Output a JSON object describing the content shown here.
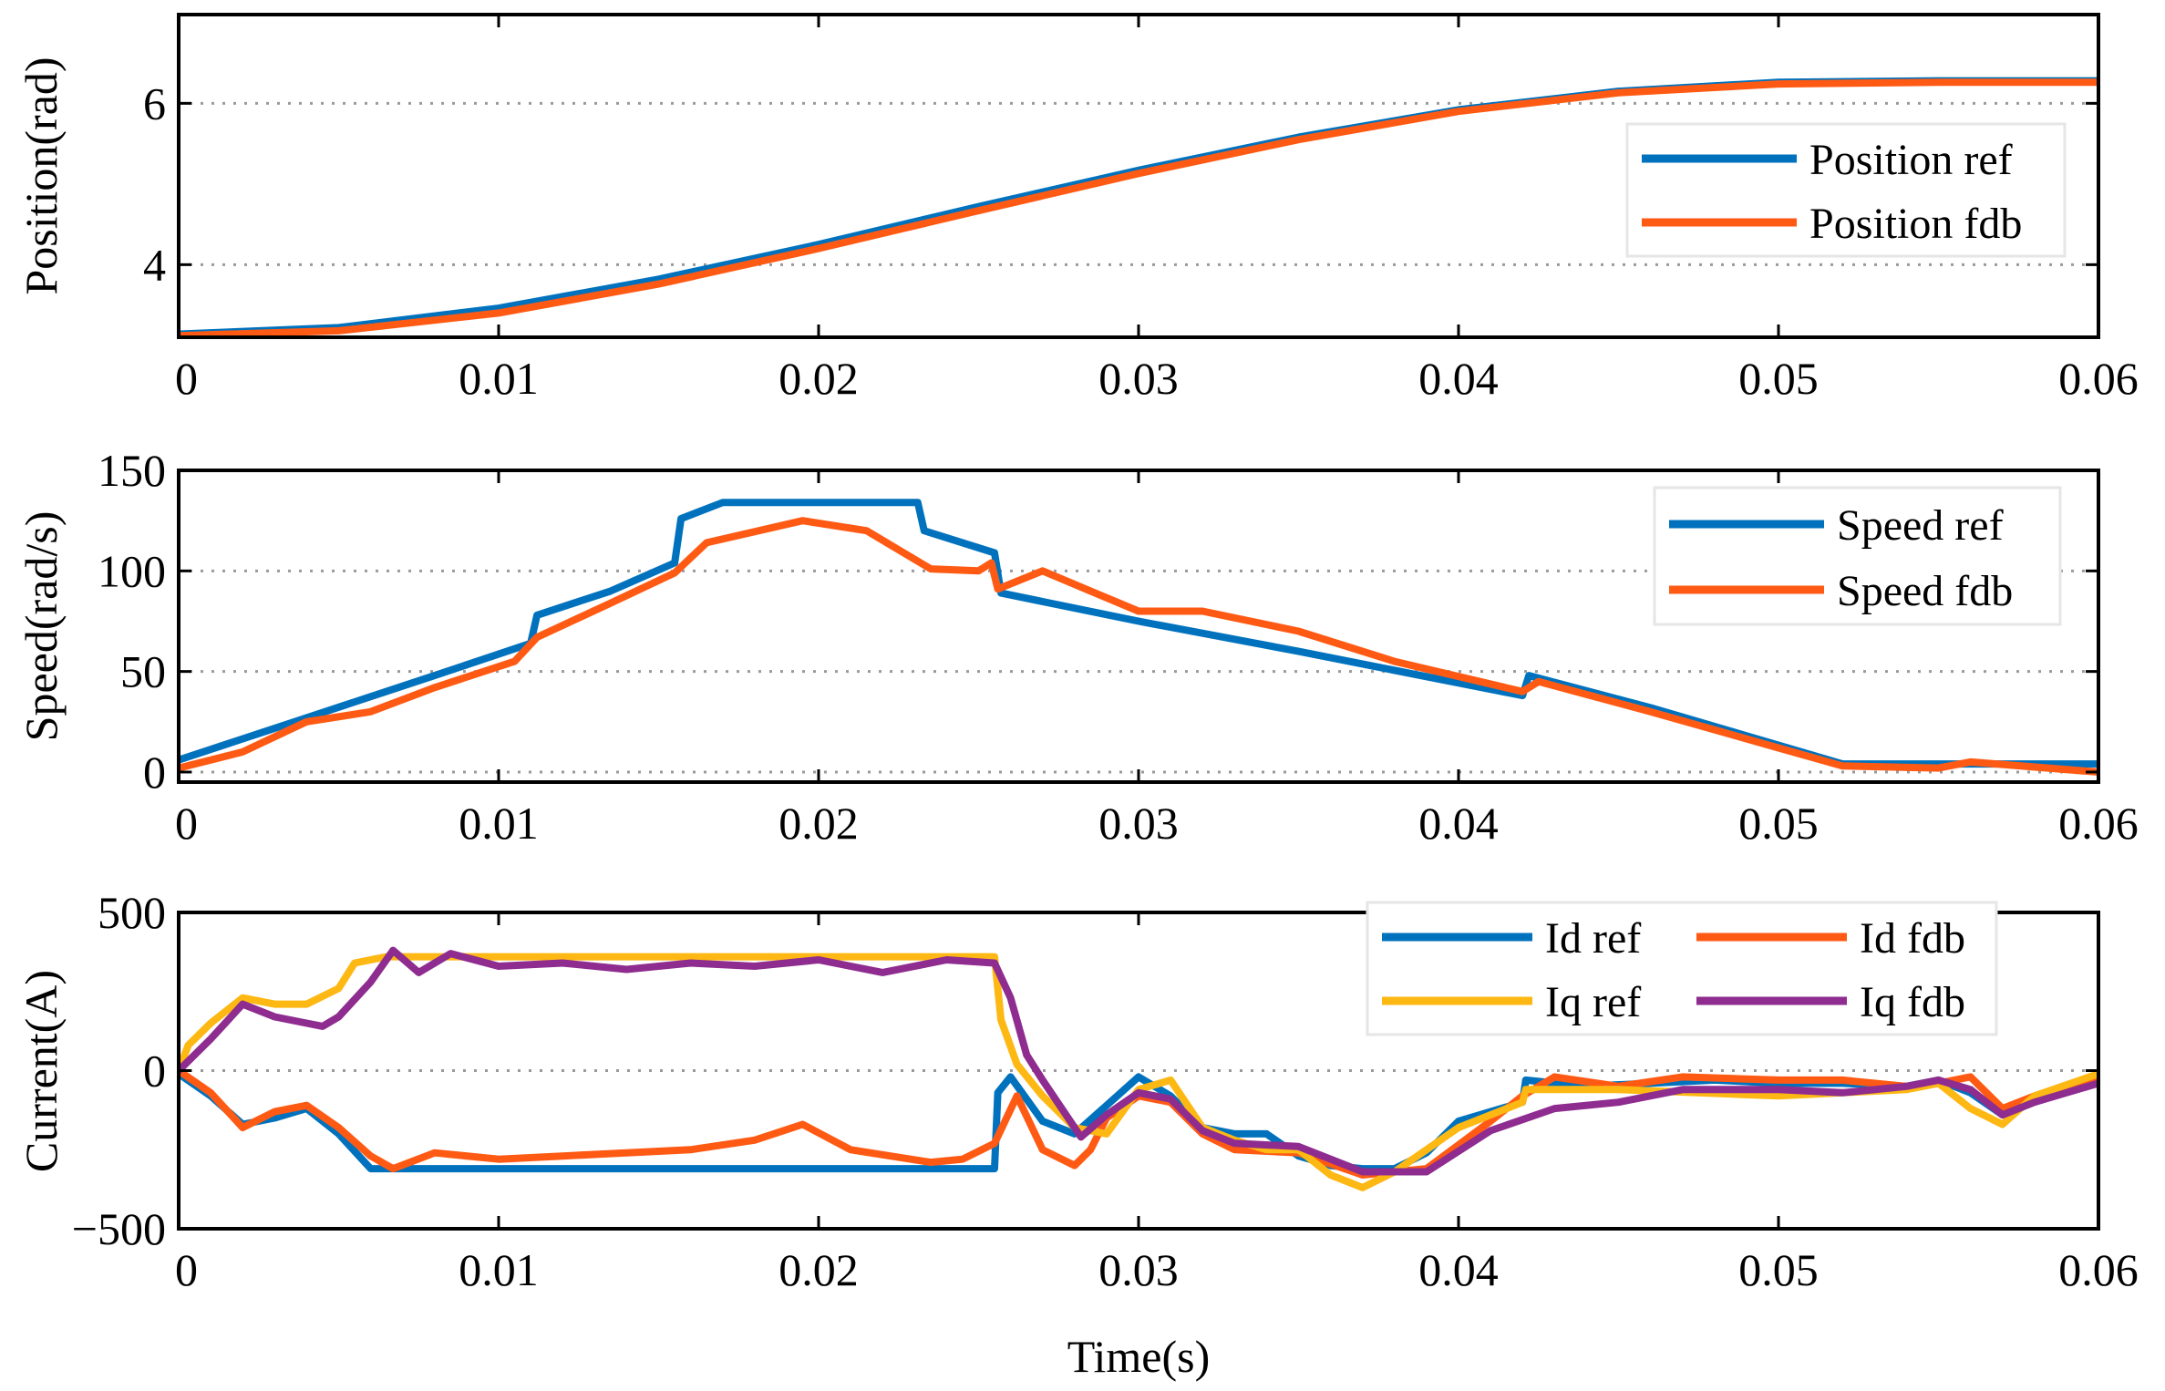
{
  "colors": {
    "blue": "#0072BD",
    "orange": "#FF5A14",
    "yellow": "#FDB813",
    "purple": "#8E2C8F"
  },
  "chart_data": [
    {
      "type": "line",
      "title": "",
      "xlabel": "",
      "ylabel": "Position(rad)",
      "xlim": [
        0,
        0.06
      ],
      "ylim": [
        3.1,
        7.1
      ],
      "xticks": [
        0,
        0.01,
        0.02,
        0.03,
        0.04,
        0.05,
        0.06
      ],
      "xtick_labels": [
        "0",
        "0.01",
        "0.02",
        "0.03",
        "0.04",
        "0.05",
        "0.06"
      ],
      "yticks": [
        4,
        6
      ],
      "ytick_labels": [
        "4",
        "6"
      ],
      "grid": "y-dotted",
      "legend": {
        "position": "right",
        "columns": 1
      },
      "series": [
        {
          "name": "Position ref",
          "color": "blue",
          "x": [
            0,
            0.005,
            0.01,
            0.015,
            0.02,
            0.025,
            0.03,
            0.035,
            0.04,
            0.045,
            0.05,
            0.055,
            0.06
          ],
          "y": [
            3.14,
            3.22,
            3.46,
            3.82,
            4.25,
            4.72,
            5.17,
            5.58,
            5.92,
            6.15,
            6.26,
            6.28,
            6.28
          ]
        },
        {
          "name": "Position fdb",
          "color": "orange",
          "x": [
            0,
            0.005,
            0.01,
            0.015,
            0.02,
            0.025,
            0.03,
            0.035,
            0.04,
            0.045,
            0.05,
            0.055,
            0.06
          ],
          "y": [
            3.12,
            3.18,
            3.4,
            3.76,
            4.2,
            4.67,
            5.13,
            5.55,
            5.9,
            6.13,
            6.24,
            6.26,
            6.26
          ]
        }
      ]
    },
    {
      "type": "line",
      "title": "",
      "xlabel": "",
      "ylabel": "Speed(rad/s)",
      "xlim": [
        0,
        0.06
      ],
      "ylim": [
        -5,
        150
      ],
      "xticks": [
        0,
        0.01,
        0.02,
        0.03,
        0.04,
        0.05,
        0.06
      ],
      "xtick_labels": [
        "0",
        "0.01",
        "0.02",
        "0.03",
        "0.04",
        "0.05",
        "0.06"
      ],
      "yticks": [
        0,
        50,
        100,
        150
      ],
      "ytick_labels": [
        "0",
        "50",
        "100",
        "150"
      ],
      "grid": "y-dotted",
      "legend": {
        "position": "top-right",
        "columns": 1
      },
      "series": [
        {
          "name": "Speed ref",
          "color": "blue",
          "x": [
            0,
            0.004,
            0.008,
            0.011,
            0.0112,
            0.0135,
            0.0155,
            0.0157,
            0.017,
            0.0231,
            0.0233,
            0.0255,
            0.0257,
            0.03,
            0.035,
            0.042,
            0.0422,
            0.046,
            0.052,
            0.056,
            0.06
          ],
          "y": [
            6,
            27,
            48,
            64,
            78,
            90,
            104,
            126,
            134,
            134,
            120,
            109,
            89,
            75,
            60,
            38,
            48,
            32,
            4,
            4,
            4
          ]
        },
        {
          "name": "Speed fdb",
          "color": "orange",
          "x": [
            0,
            0.002,
            0.004,
            0.006,
            0.008,
            0.0105,
            0.0112,
            0.0135,
            0.0155,
            0.0165,
            0.0195,
            0.0215,
            0.0235,
            0.025,
            0.0254,
            0.0256,
            0.027,
            0.0285,
            0.03,
            0.032,
            0.035,
            0.038,
            0.042,
            0.0425,
            0.046,
            0.05,
            0.052,
            0.055,
            0.056,
            0.06
          ],
          "y": [
            2,
            10,
            25,
            30,
            42,
            55,
            67,
            84,
            99,
            114,
            125,
            120,
            101,
            100,
            104,
            91,
            100,
            90,
            80,
            80,
            70,
            55,
            40,
            45,
            30,
            12,
            3,
            2,
            5,
            0
          ]
        }
      ]
    },
    {
      "type": "line",
      "title": "",
      "xlabel": "Time(s)",
      "ylabel": "Current(A)",
      "xlim": [
        0,
        0.06
      ],
      "ylim": [
        -500,
        500
      ],
      "xticks": [
        0,
        0.01,
        0.02,
        0.03,
        0.04,
        0.05,
        0.06
      ],
      "xtick_labels": [
        "0",
        "0.01",
        "0.02",
        "0.03",
        "0.04",
        "0.05",
        "0.06"
      ],
      "yticks": [
        -500,
        0,
        500
      ],
      "ytick_labels": [
        "−500",
        "0",
        "500"
      ],
      "grid": "y-dotted",
      "legend": {
        "position": "top-right",
        "columns": 2
      },
      "series": [
        {
          "name": "Id ref",
          "color": "blue",
          "x": [
            0,
            0.001,
            0.002,
            0.003,
            0.004,
            0.005,
            0.006,
            0.007,
            0.0255,
            0.0256,
            0.026,
            0.027,
            0.028,
            0.029,
            0.03,
            0.031,
            0.032,
            0.033,
            0.034,
            0.035,
            0.036,
            0.037,
            0.038,
            0.039,
            0.04,
            0.042,
            0.0421,
            0.044,
            0.046,
            0.048,
            0.05,
            0.052,
            0.054,
            0.055,
            0.056,
            0.057,
            0.058,
            0.06
          ],
          "y": [
            -10,
            -80,
            -170,
            -150,
            -120,
            -200,
            -310,
            -310,
            -310,
            -70,
            -20,
            -160,
            -200,
            -110,
            -20,
            -80,
            -180,
            -200,
            -200,
            -270,
            -300,
            -310,
            -310,
            -260,
            -160,
            -100,
            -30,
            -50,
            -40,
            -30,
            -40,
            -40,
            -50,
            -30,
            -70,
            -140,
            -90,
            -10
          ]
        },
        {
          "name": "Id fdb",
          "color": "orange",
          "x": [
            0,
            0.001,
            0.002,
            0.003,
            0.004,
            0.005,
            0.006,
            0.0067,
            0.008,
            0.01,
            0.012,
            0.014,
            0.016,
            0.018,
            0.0195,
            0.021,
            0.0235,
            0.0245,
            0.0255,
            0.0262,
            0.027,
            0.028,
            0.0285,
            0.029,
            0.03,
            0.031,
            0.032,
            0.033,
            0.035,
            0.037,
            0.039,
            0.041,
            0.042,
            0.043,
            0.045,
            0.047,
            0.05,
            0.052,
            0.054,
            0.055,
            0.056,
            0.057,
            0.058,
            0.06
          ],
          "y": [
            0,
            -70,
            -180,
            -130,
            -110,
            -180,
            -270,
            -310,
            -260,
            -280,
            -270,
            -260,
            -250,
            -220,
            -170,
            -250,
            -290,
            -280,
            -230,
            -80,
            -250,
            -300,
            -250,
            -150,
            -80,
            -100,
            -200,
            -250,
            -260,
            -330,
            -310,
            -160,
            -80,
            -20,
            -50,
            -20,
            -30,
            -30,
            -50,
            -40,
            -20,
            -120,
            -80,
            -20
          ]
        },
        {
          "name": "Iq ref",
          "color": "yellow",
          "x": [
            0,
            0.0003,
            0.001,
            0.002,
            0.003,
            0.004,
            0.005,
            0.0055,
            0.0065,
            0.0255,
            0.0257,
            0.0262,
            0.027,
            0.028,
            0.029,
            0.03,
            0.031,
            0.032,
            0.033,
            0.034,
            0.035,
            0.036,
            0.037,
            0.038,
            0.039,
            0.04,
            0.042,
            0.0421,
            0.045,
            0.05,
            0.052,
            0.054,
            0.055,
            0.056,
            0.057,
            0.058,
            0.06
          ],
          "y": [
            0,
            80,
            150,
            230,
            210,
            210,
            260,
            340,
            360,
            360,
            160,
            20,
            -80,
            -180,
            -200,
            -60,
            -30,
            -180,
            -220,
            -250,
            -250,
            -330,
            -370,
            -320,
            -250,
            -180,
            -100,
            -60,
            -60,
            -80,
            -70,
            -60,
            -40,
            -120,
            -170,
            -80,
            -10
          ]
        },
        {
          "name": "Iq fdb",
          "color": "purple",
          "x": [
            0,
            0.001,
            0.002,
            0.003,
            0.004,
            0.0045,
            0.005,
            0.006,
            0.0067,
            0.0075,
            0.0085,
            0.01,
            0.012,
            0.014,
            0.016,
            0.018,
            0.02,
            0.022,
            0.024,
            0.0255,
            0.026,
            0.0265,
            0.027,
            0.0282,
            0.029,
            0.03,
            0.031,
            0.032,
            0.033,
            0.035,
            0.037,
            0.039,
            0.041,
            0.043,
            0.045,
            0.047,
            0.05,
            0.052,
            0.054,
            0.055,
            0.056,
            0.057,
            0.058,
            0.06
          ],
          "y": [
            0,
            100,
            210,
            170,
            150,
            140,
            170,
            280,
            380,
            310,
            370,
            330,
            340,
            320,
            340,
            330,
            350,
            310,
            350,
            340,
            230,
            50,
            -30,
            -210,
            -140,
            -70,
            -90,
            -190,
            -230,
            -240,
            -320,
            -320,
            -190,
            -120,
            -100,
            -60,
            -60,
            -70,
            -50,
            -30,
            -60,
            -140,
            -100,
            -40
          ]
        }
      ]
    }
  ]
}
